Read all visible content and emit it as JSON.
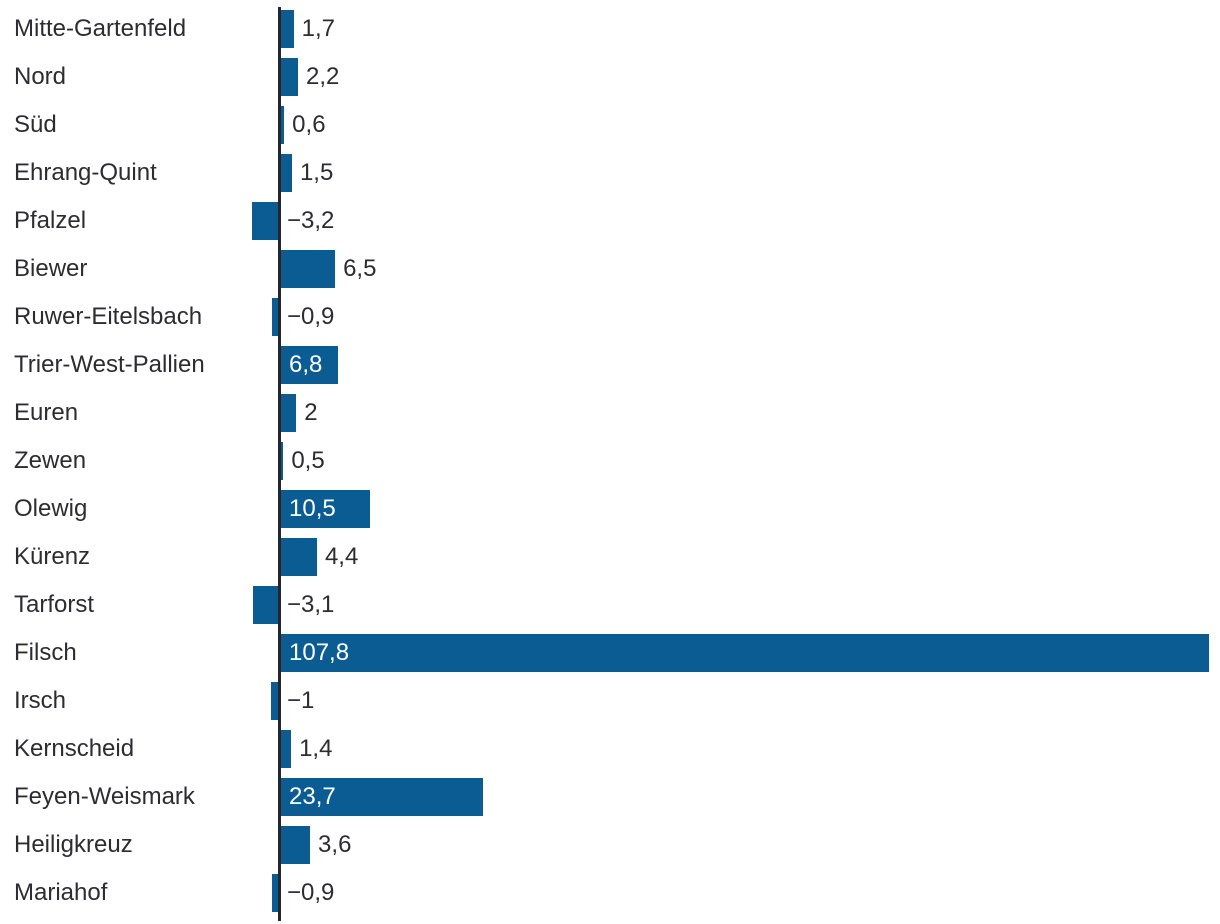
{
  "chart_data": {
    "type": "bar",
    "orientation": "horizontal",
    "categories": [
      "Mitte-Gartenfeld",
      "Nord",
      "Süd",
      "Ehrang-Quint",
      "Pfalzel",
      "Biewer",
      "Ruwer-Eitelsbach",
      "Trier-West-Pallien",
      "Euren",
      "Zewen",
      "Olewig",
      "Kürenz",
      "Tarforst",
      "Filsch",
      "Irsch",
      "Kernscheid",
      "Feyen-Weismark",
      "Heiligkreuz",
      "Mariahof"
    ],
    "values": [
      1.7,
      2.2,
      0.6,
      1.5,
      -3.2,
      6.5,
      -0.9,
      6.8,
      2,
      0.5,
      10.5,
      4.4,
      -3.1,
      107.8,
      -1,
      1.4,
      23.7,
      3.6,
      -0.9
    ],
    "value_labels": [
      "1,7",
      "2,2",
      "0,6",
      "1,5",
      "−3,2",
      "6,5",
      "−0,9",
      "6,8",
      "2",
      "0,5",
      "10,5",
      "4,4",
      "−3,1",
      "107,8",
      "−1",
      "1,4",
      "23,7",
      "3,6",
      "−0,9"
    ],
    "label_inside": [
      false,
      false,
      false,
      false,
      false,
      false,
      false,
      true,
      false,
      false,
      true,
      false,
      false,
      true,
      false,
      false,
      true,
      false,
      false
    ],
    "xlim": [
      -3.2,
      107.8
    ],
    "grid": false,
    "legend": false,
    "colors": {
      "bar": "#0b5c92",
      "axis": "#26262a",
      "label_text": "#2c2c31",
      "value_text_outside": "#2c2c31",
      "value_text_inside": "#ffffff",
      "background": "#ffffff"
    }
  }
}
